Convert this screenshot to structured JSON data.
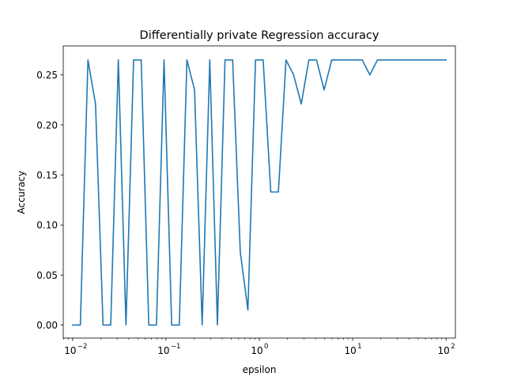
{
  "chart_data": {
    "type": "line",
    "title": "Differentially private Regression accuracy",
    "xlabel": "epsilon",
    "ylabel": "Accuracy",
    "xscale": "log",
    "xlim": [
      0.00794,
      125.9
    ],
    "ylim": [
      -0.013,
      0.279
    ],
    "grid": false,
    "line_color": "#1f77b4",
    "x_ticks": [
      {
        "base": "10",
        "exp": "−2",
        "value": 0.01
      },
      {
        "base": "10",
        "exp": "−1",
        "value": 0.1
      },
      {
        "base": "10",
        "exp": "0",
        "value": 1
      },
      {
        "base": "10",
        "exp": "1",
        "value": 10
      },
      {
        "base": "10",
        "exp": "2",
        "value": 100
      }
    ],
    "y_ticks": [
      "0.00",
      "0.05",
      "0.10",
      "0.15",
      "0.20",
      "0.25"
    ],
    "y_tick_values": [
      0.0,
      0.05,
      0.1,
      0.15,
      0.2,
      0.25
    ],
    "series": [
      {
        "x": [
          0.01,
          0.0121,
          0.0146,
          0.0176,
          0.0212,
          0.0256,
          0.0309,
          0.0373,
          0.045,
          0.0543,
          0.0655,
          0.0791,
          0.0954,
          0.1151,
          0.1389,
          0.1677,
          0.2024,
          0.2442,
          0.2947,
          0.3556,
          0.4292,
          0.5179,
          0.6251,
          0.7543,
          0.9103,
          1.0985,
          1.3257,
          1.5999,
          1.9307,
          2.33,
          2.8118,
          3.3932,
          4.0949,
          4.9417,
          5.9636,
          7.1969,
          8.6851,
          10.4811,
          12.6486,
          15.2642,
          18.4207,
          22.23,
          26.827,
          32.3746,
          39.0694,
          47.1487,
          56.8987,
          68.6649,
          82.8643,
          100.0
        ],
        "y": [
          0.0,
          0.0,
          0.265,
          0.221,
          0.0,
          0.0,
          0.265,
          0.0,
          0.265,
          0.265,
          0.0,
          0.0,
          0.265,
          0.0,
          0.0,
          0.265,
          0.235,
          0.0,
          0.265,
          0.0,
          0.265,
          0.265,
          0.073,
          0.015,
          0.265,
          0.265,
          0.133,
          0.133,
          0.265,
          0.25,
          0.221,
          0.265,
          0.265,
          0.235,
          0.265,
          0.265,
          0.265,
          0.265,
          0.265,
          0.25,
          0.265,
          0.265,
          0.265,
          0.265,
          0.265,
          0.265,
          0.265,
          0.265,
          0.265,
          0.265
        ]
      }
    ]
  }
}
